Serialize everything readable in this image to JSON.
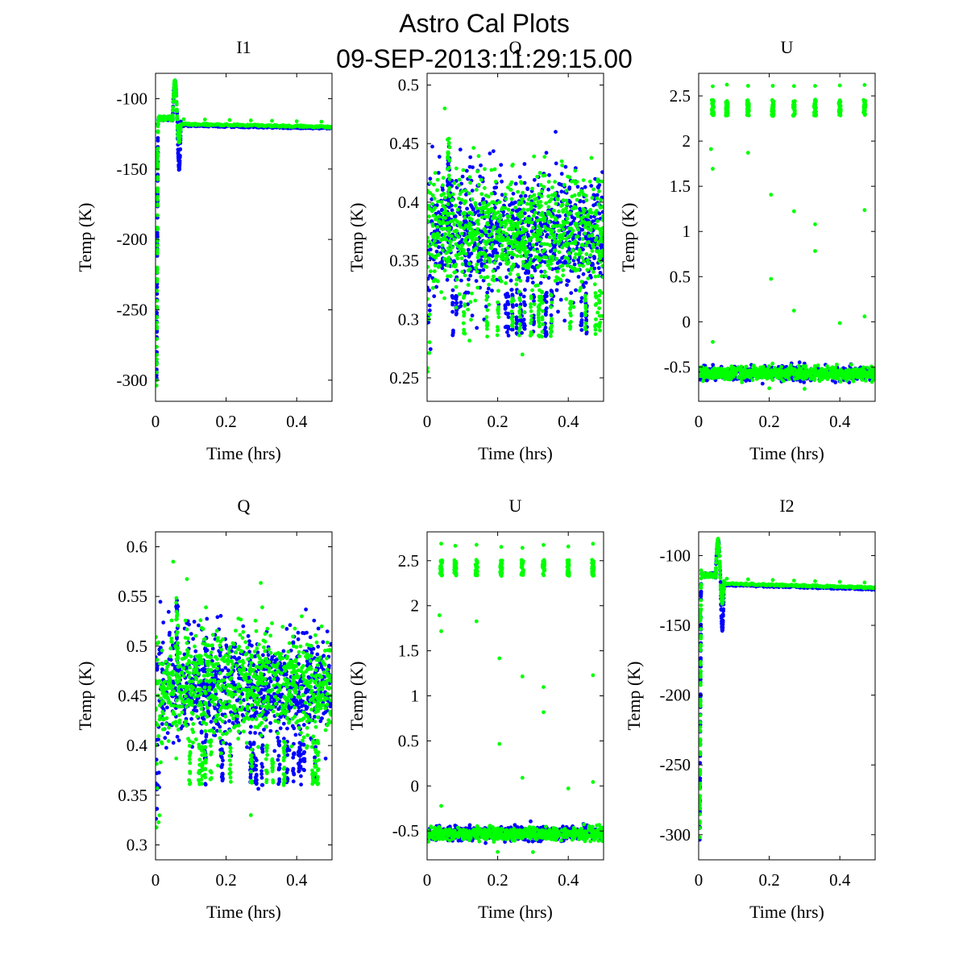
{
  "figure": {
    "title_line1": "Astro Cal Plots",
    "title_line2": "09-SEP-2013:11:29:15.00"
  },
  "colors": {
    "series_a": "#0000ff",
    "series_b": "#00ff00",
    "axes": "#000000",
    "background": "#ffffff"
  },
  "chart_data": [
    {
      "type": "scatter",
      "title": "I1",
      "xlabel": "Time (hrs)",
      "ylabel": "Temp (K)",
      "xlim": [
        0,
        0.5
      ],
      "ylim": [
        -315,
        -82
      ],
      "xticks": [
        0,
        0.2,
        0.4
      ],
      "yticks": [
        -100,
        -150,
        -200,
        -250,
        -300
      ],
      "kind": "temp",
      "params": {
        "base": -142,
        "spike_low": -300,
        "plateau": -116,
        "peak": -88,
        "dip": -150,
        "level": -118,
        "drift": -2,
        "diff": -1
      },
      "series": [
        {
          "color": "#0000ff",
          "values": []
        },
        {
          "color": "#00ff00",
          "values": []
        }
      ]
    },
    {
      "type": "scatter",
      "title": "Q",
      "xlabel": "Time (hrs)",
      "ylabel": "Temp (K)",
      "xlim": [
        0,
        0.5
      ],
      "ylim": [
        0.23,
        0.51
      ],
      "xticks": [
        0,
        0.2,
        0.4
      ],
      "yticks": [
        0.25,
        0.3,
        0.35,
        0.4,
        0.45,
        0.5
      ],
      "kind": "noise",
      "params": {
        "center": 0.375,
        "spread": 0.045,
        "low_start": 0.25,
        "outliers": [
          0.48,
          0.27
        ]
      },
      "series": [
        {
          "color": "#0000ff",
          "values": []
        },
        {
          "color": "#00ff00",
          "values": []
        }
      ]
    },
    {
      "type": "scatter",
      "title": "U",
      "xlabel": "Time (hrs)",
      "ylabel": "Temp (K)",
      "xlim": [
        0,
        0.5
      ],
      "ylim": [
        -0.88,
        2.75
      ],
      "xticks": [
        0,
        0.2,
        0.4
      ],
      "yticks": [
        2.5,
        2,
        1.5,
        1,
        0.5,
        0,
        -0.5
      ],
      "kind": "bimodal",
      "params": {
        "low": -0.57,
        "high": 2.37,
        "bursts": [
          0.04,
          0.08,
          0.14,
          0.21,
          0.27,
          0.33,
          0.4,
          0.47
        ]
      },
      "series": [
        {
          "color": "#0000ff",
          "values": []
        },
        {
          "color": "#00ff00",
          "values": []
        }
      ]
    },
    {
      "type": "scatter",
      "title": "Q",
      "xlabel": "Time (hrs)",
      "ylabel": "Temp (K)",
      "xlim": [
        0,
        0.5
      ],
      "ylim": [
        0.285,
        0.615
      ],
      "xticks": [
        0,
        0.2,
        0.4
      ],
      "yticks": [
        0.3,
        0.35,
        0.4,
        0.45,
        0.5,
        0.55,
        0.6
      ],
      "kind": "noise",
      "params": {
        "center": 0.46,
        "spread": 0.05,
        "low_start": 0.31,
        "outliers": [
          0.585,
          0.33
        ]
      },
      "series": [
        {
          "color": "#0000ff",
          "values": []
        },
        {
          "color": "#00ff00",
          "values": []
        }
      ]
    },
    {
      "type": "scatter",
      "title": "U",
      "xlabel": "Time (hrs)",
      "ylabel": "Temp (K)",
      "xlim": [
        0,
        0.5
      ],
      "ylim": [
        -0.82,
        2.82
      ],
      "xticks": [
        0,
        0.2,
        0.4
      ],
      "yticks": [
        2.5,
        2,
        1.5,
        1,
        0.5,
        0,
        -0.5
      ],
      "kind": "bimodal",
      "params": {
        "low": -0.53,
        "high": 2.42,
        "bursts": [
          0.04,
          0.08,
          0.14,
          0.21,
          0.27,
          0.33,
          0.4,
          0.47
        ]
      },
      "series": [
        {
          "color": "#0000ff",
          "values": []
        },
        {
          "color": "#00ff00",
          "values": []
        }
      ]
    },
    {
      "type": "scatter",
      "title": "I2",
      "xlabel": "Time (hrs)",
      "ylabel": "Temp (K)",
      "xlim": [
        0,
        0.5
      ],
      "ylim": [
        -318,
        -83
      ],
      "xticks": [
        0,
        0.2,
        0.4
      ],
      "yticks": [
        -100,
        -150,
        -200,
        -250,
        -300
      ],
      "kind": "temp",
      "params": {
        "base": -143,
        "spike_low": -302,
        "plateau": -116,
        "peak": -89,
        "dip": -153,
        "level": -120,
        "drift": -3,
        "diff": -1
      },
      "series": [
        {
          "color": "#0000ff",
          "values": []
        },
        {
          "color": "#00ff00",
          "values": []
        }
      ]
    }
  ]
}
